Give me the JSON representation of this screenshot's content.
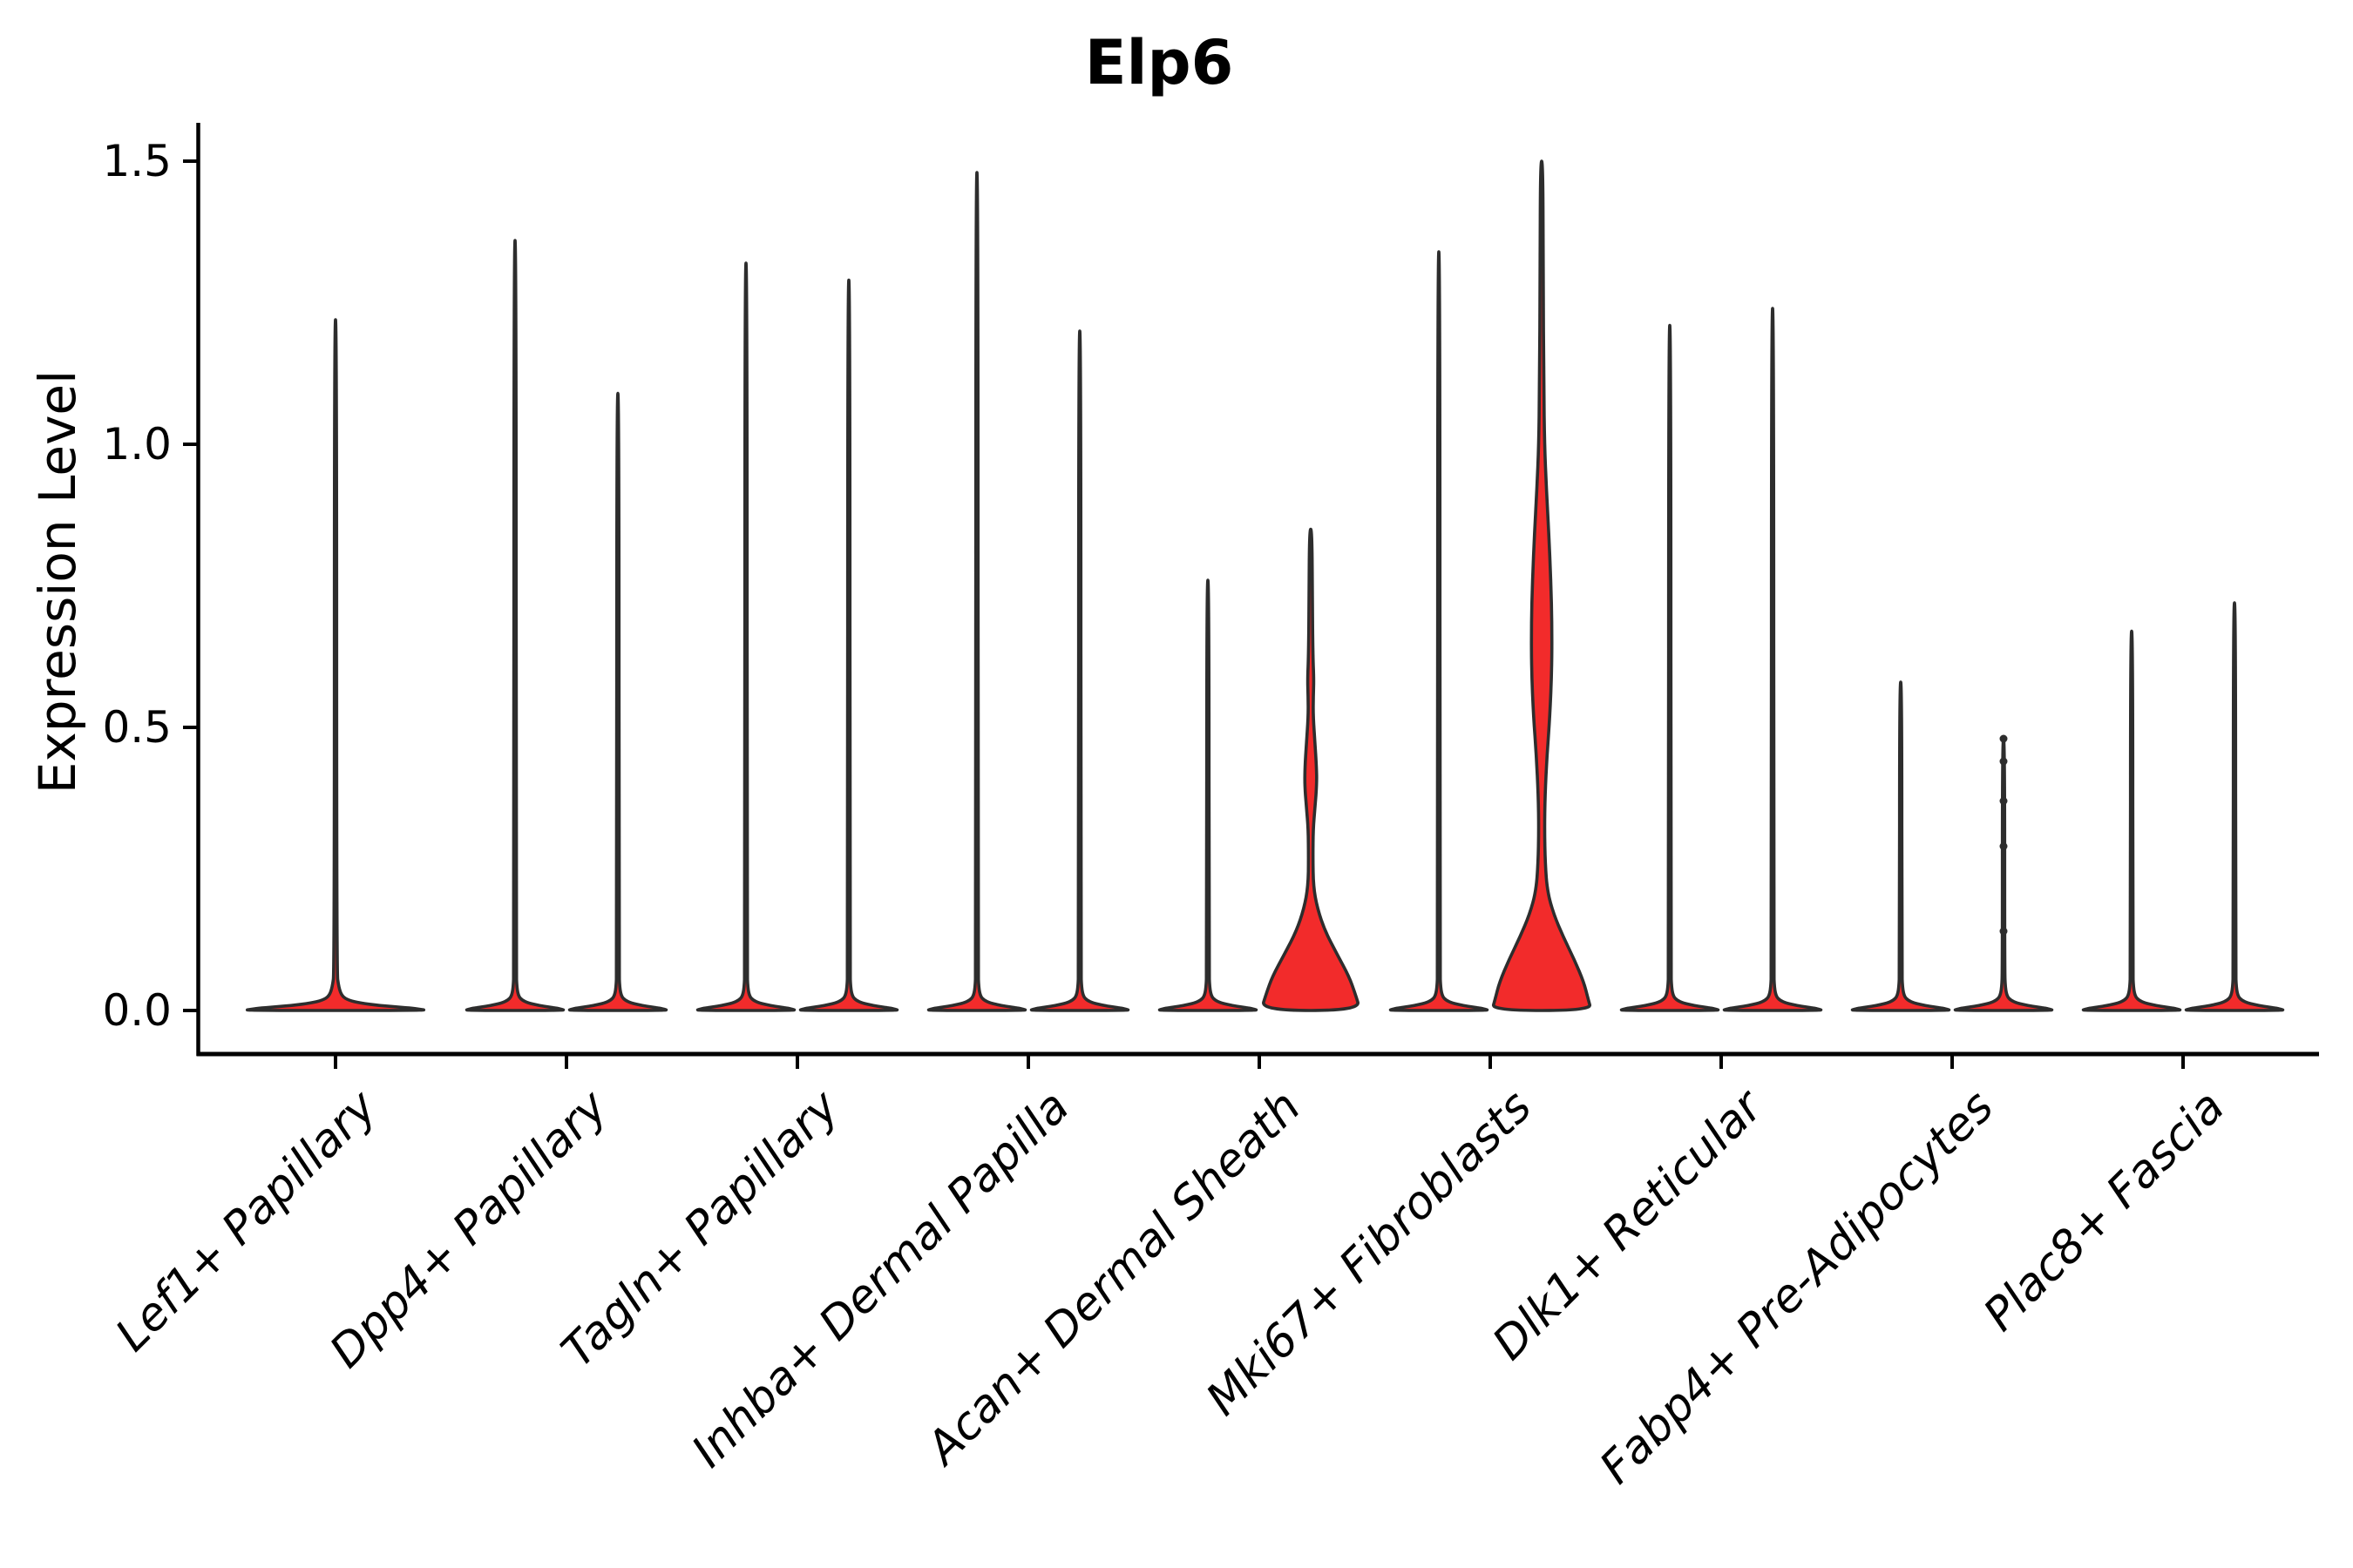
{
  "chart_data": {
    "type": "violin",
    "title": "Elp6",
    "ylabel": "Expression Level",
    "ylim": [
      0,
      1.55
    ],
    "yticks": [
      0.0,
      0.5,
      1.0,
      1.5
    ],
    "ytick_labels": [
      "0.0",
      "0.5",
      "1.0",
      "1.5"
    ],
    "legend": "none",
    "grid": "off",
    "colors": {
      "highlight_fill": "#f22b2b",
      "violin_outline": "#2d2d2d",
      "axis": "#000000"
    },
    "categories": [
      {
        "label": "Lef1+ Papillary",
        "violins": [
          {
            "max": 1.22,
            "style": "spike",
            "width": "full",
            "filled": false
          }
        ]
      },
      {
        "label": "Dpp4+ Papillary",
        "violins": [
          {
            "max": 1.36,
            "style": "spike",
            "filled": false
          },
          {
            "max": 1.09,
            "style": "spike",
            "filled": false
          }
        ]
      },
      {
        "label": "Tagln+ Papillary",
        "violins": [
          {
            "max": 1.32,
            "style": "spike",
            "filled": false
          },
          {
            "max": 1.29,
            "style": "spike",
            "filled": false
          }
        ]
      },
      {
        "label": "Inhba+ Dermal Papilla",
        "violins": [
          {
            "max": 1.48,
            "style": "spike",
            "filled": false
          },
          {
            "max": 1.2,
            "style": "spike",
            "filled": false
          }
        ]
      },
      {
        "label": "Acan+ Dermal Sheath",
        "violins": [
          {
            "max": 0.76,
            "style": "spike",
            "filled": false
          },
          {
            "max": 0.85,
            "style": "density",
            "filled": true,
            "profile": [
              [
                0.85,
                1.4
              ],
              [
                0.72,
                1.9
              ],
              [
                0.63,
                2.5
              ],
              [
                0.585,
                3.6
              ],
              [
                0.555,
                3.0
              ],
              [
                0.52,
                2.8
              ],
              [
                0.47,
                5.0
              ],
              [
                0.43,
                6.6
              ],
              [
                0.4,
                6.9
              ],
              [
                0.36,
                5.0
              ],
              [
                0.32,
                2.8
              ],
              [
                0.27,
                2.5
              ],
              [
                0.22,
                3.0
              ],
              [
                0.18,
                7.7
              ],
              [
                0.14,
                16.5
              ],
              [
                0.1,
                30
              ],
              [
                0.06,
                44
              ],
              [
                0.03,
                51
              ],
              [
                0,
                57
              ]
            ]
          }
        ]
      },
      {
        "label": "Mki67+ Fibroblasts",
        "violins": [
          {
            "max": 1.34,
            "style": "spike",
            "filled": false
          },
          {
            "max": 1.5,
            "style": "density",
            "filled": true,
            "profile": [
              [
                1.5,
                1.4
              ],
              [
                1.3,
                1.7
              ],
              [
                1.1,
                2.5
              ],
              [
                1.0,
                3.3
              ],
              [
                0.92,
                5.5
              ],
              [
                0.84,
                8.3
              ],
              [
                0.76,
                10.5
              ],
              [
                0.68,
                11.8
              ],
              [
                0.6,
                11.6
              ],
              [
                0.52,
                9.4
              ],
              [
                0.45,
                6.1
              ],
              [
                0.38,
                3.9
              ],
              [
                0.32,
                3.3
              ],
              [
                0.26,
                4.1
              ],
              [
                0.21,
                6.6
              ],
              [
                0.17,
                13.8
              ],
              [
                0.13,
                24.8
              ],
              [
                0.09,
                37.4
              ],
              [
                0.05,
                48.4
              ],
              [
                0.02,
                53.4
              ],
              [
                0,
                57
              ]
            ]
          }
        ]
      },
      {
        "label": "Dlk1+ Reticular",
        "violins": [
          {
            "max": 1.21,
            "style": "spike",
            "filled": false
          },
          {
            "max": 1.24,
            "style": "spike",
            "filled": false
          }
        ]
      },
      {
        "label": "Fabp4+ Pre-Adipocytes",
        "violins": [
          {
            "max": 0.58,
            "style": "spike",
            "filled": false
          },
          {
            "max": 0.48,
            "style": "spike",
            "filled": false,
            "beads": [
              0.48,
              0.44,
              0.37,
              0.29,
              0.14
            ]
          }
        ]
      },
      {
        "label": "Plac8+ Fascia",
        "violins": [
          {
            "max": 0.67,
            "style": "spike",
            "filled": false
          },
          {
            "max": 0.72,
            "style": "spike",
            "filled": false
          }
        ]
      }
    ]
  }
}
